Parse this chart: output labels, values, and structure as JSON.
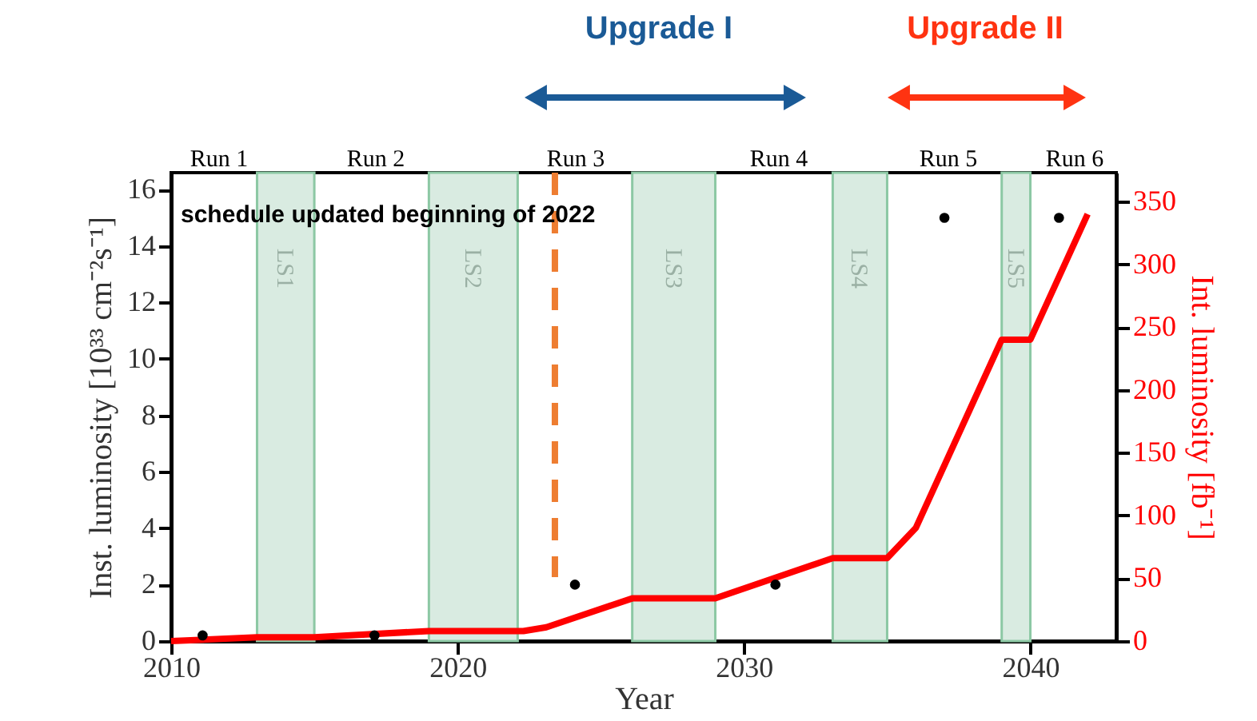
{
  "chart_data": {
    "type": "line",
    "xlabel": "Year",
    "ylabel": "Inst. luminosity [10³³ cm⁻²s⁻¹]",
    "y2label": "Int. luminosity [fb⁻¹]",
    "xlim": [
      2010,
      2043
    ],
    "xticks": [
      2010,
      2020,
      2030,
      2040
    ],
    "ylim": [
      0,
      16.6
    ],
    "yticks": [
      0,
      2,
      4,
      6,
      8,
      10,
      12,
      14,
      16
    ],
    "y2lim": [
      0,
      373
    ],
    "y2ticks": [
      0,
      50,
      100,
      150,
      200,
      250,
      300,
      350
    ],
    "grid": false,
    "series": [
      {
        "type": "scatter",
        "color": "#000000",
        "marker": "circle",
        "x": [
          2011.1,
          2017.1,
          2024.1,
          2031.1,
          2037.0,
          2041.0
        ],
        "values": [
          0.2,
          0.2,
          2,
          2,
          15,
          15
        ]
      },
      {
        "color": "#ff0000",
        "axis": "y2",
        "line_style": "solid",
        "x": [
          2010,
          2013,
          2015,
          2019,
          2022.3,
          2023.1,
          2026.1,
          2029,
          2033.1,
          2035,
          2036,
          2039,
          2040,
          2042
        ],
        "values": [
          0,
          3,
          3,
          8,
          8,
          11,
          34,
          34,
          66,
          66,
          90,
          240,
          240,
          340
        ]
      }
    ],
    "bands": [
      {
        "axis": "x",
        "from": 2013,
        "to": 2015,
        "label": "LS1",
        "color": "#d9ebe1"
      },
      {
        "axis": "x",
        "from": 2019,
        "to": 2022.1,
        "label": "LS2",
        "color": "#d9ebe1"
      },
      {
        "axis": "x",
        "from": 2026.1,
        "to": 2029,
        "label": "LS3",
        "color": "#d9ebe1"
      },
      {
        "axis": "x",
        "from": 2033.1,
        "to": 2035,
        "label": "LS4",
        "color": "#d9ebe1"
      },
      {
        "axis": "x",
        "from": 2039,
        "to": 2040,
        "label": "LS5",
        "color": "#d9ebe1"
      }
    ],
    "ref_lines": [
      {
        "axis": "x",
        "value": 2023.4,
        "label": null,
        "color": "#ee7d31",
        "line_style": "dashed"
      }
    ],
    "annotations": [
      "schedule updated beginning of 2022",
      "Upgrade I",
      "Upgrade II",
      "Run 1",
      "Run 2",
      "Run 3",
      "Run 4",
      "Run 5",
      "Run 6"
    ]
  }
}
